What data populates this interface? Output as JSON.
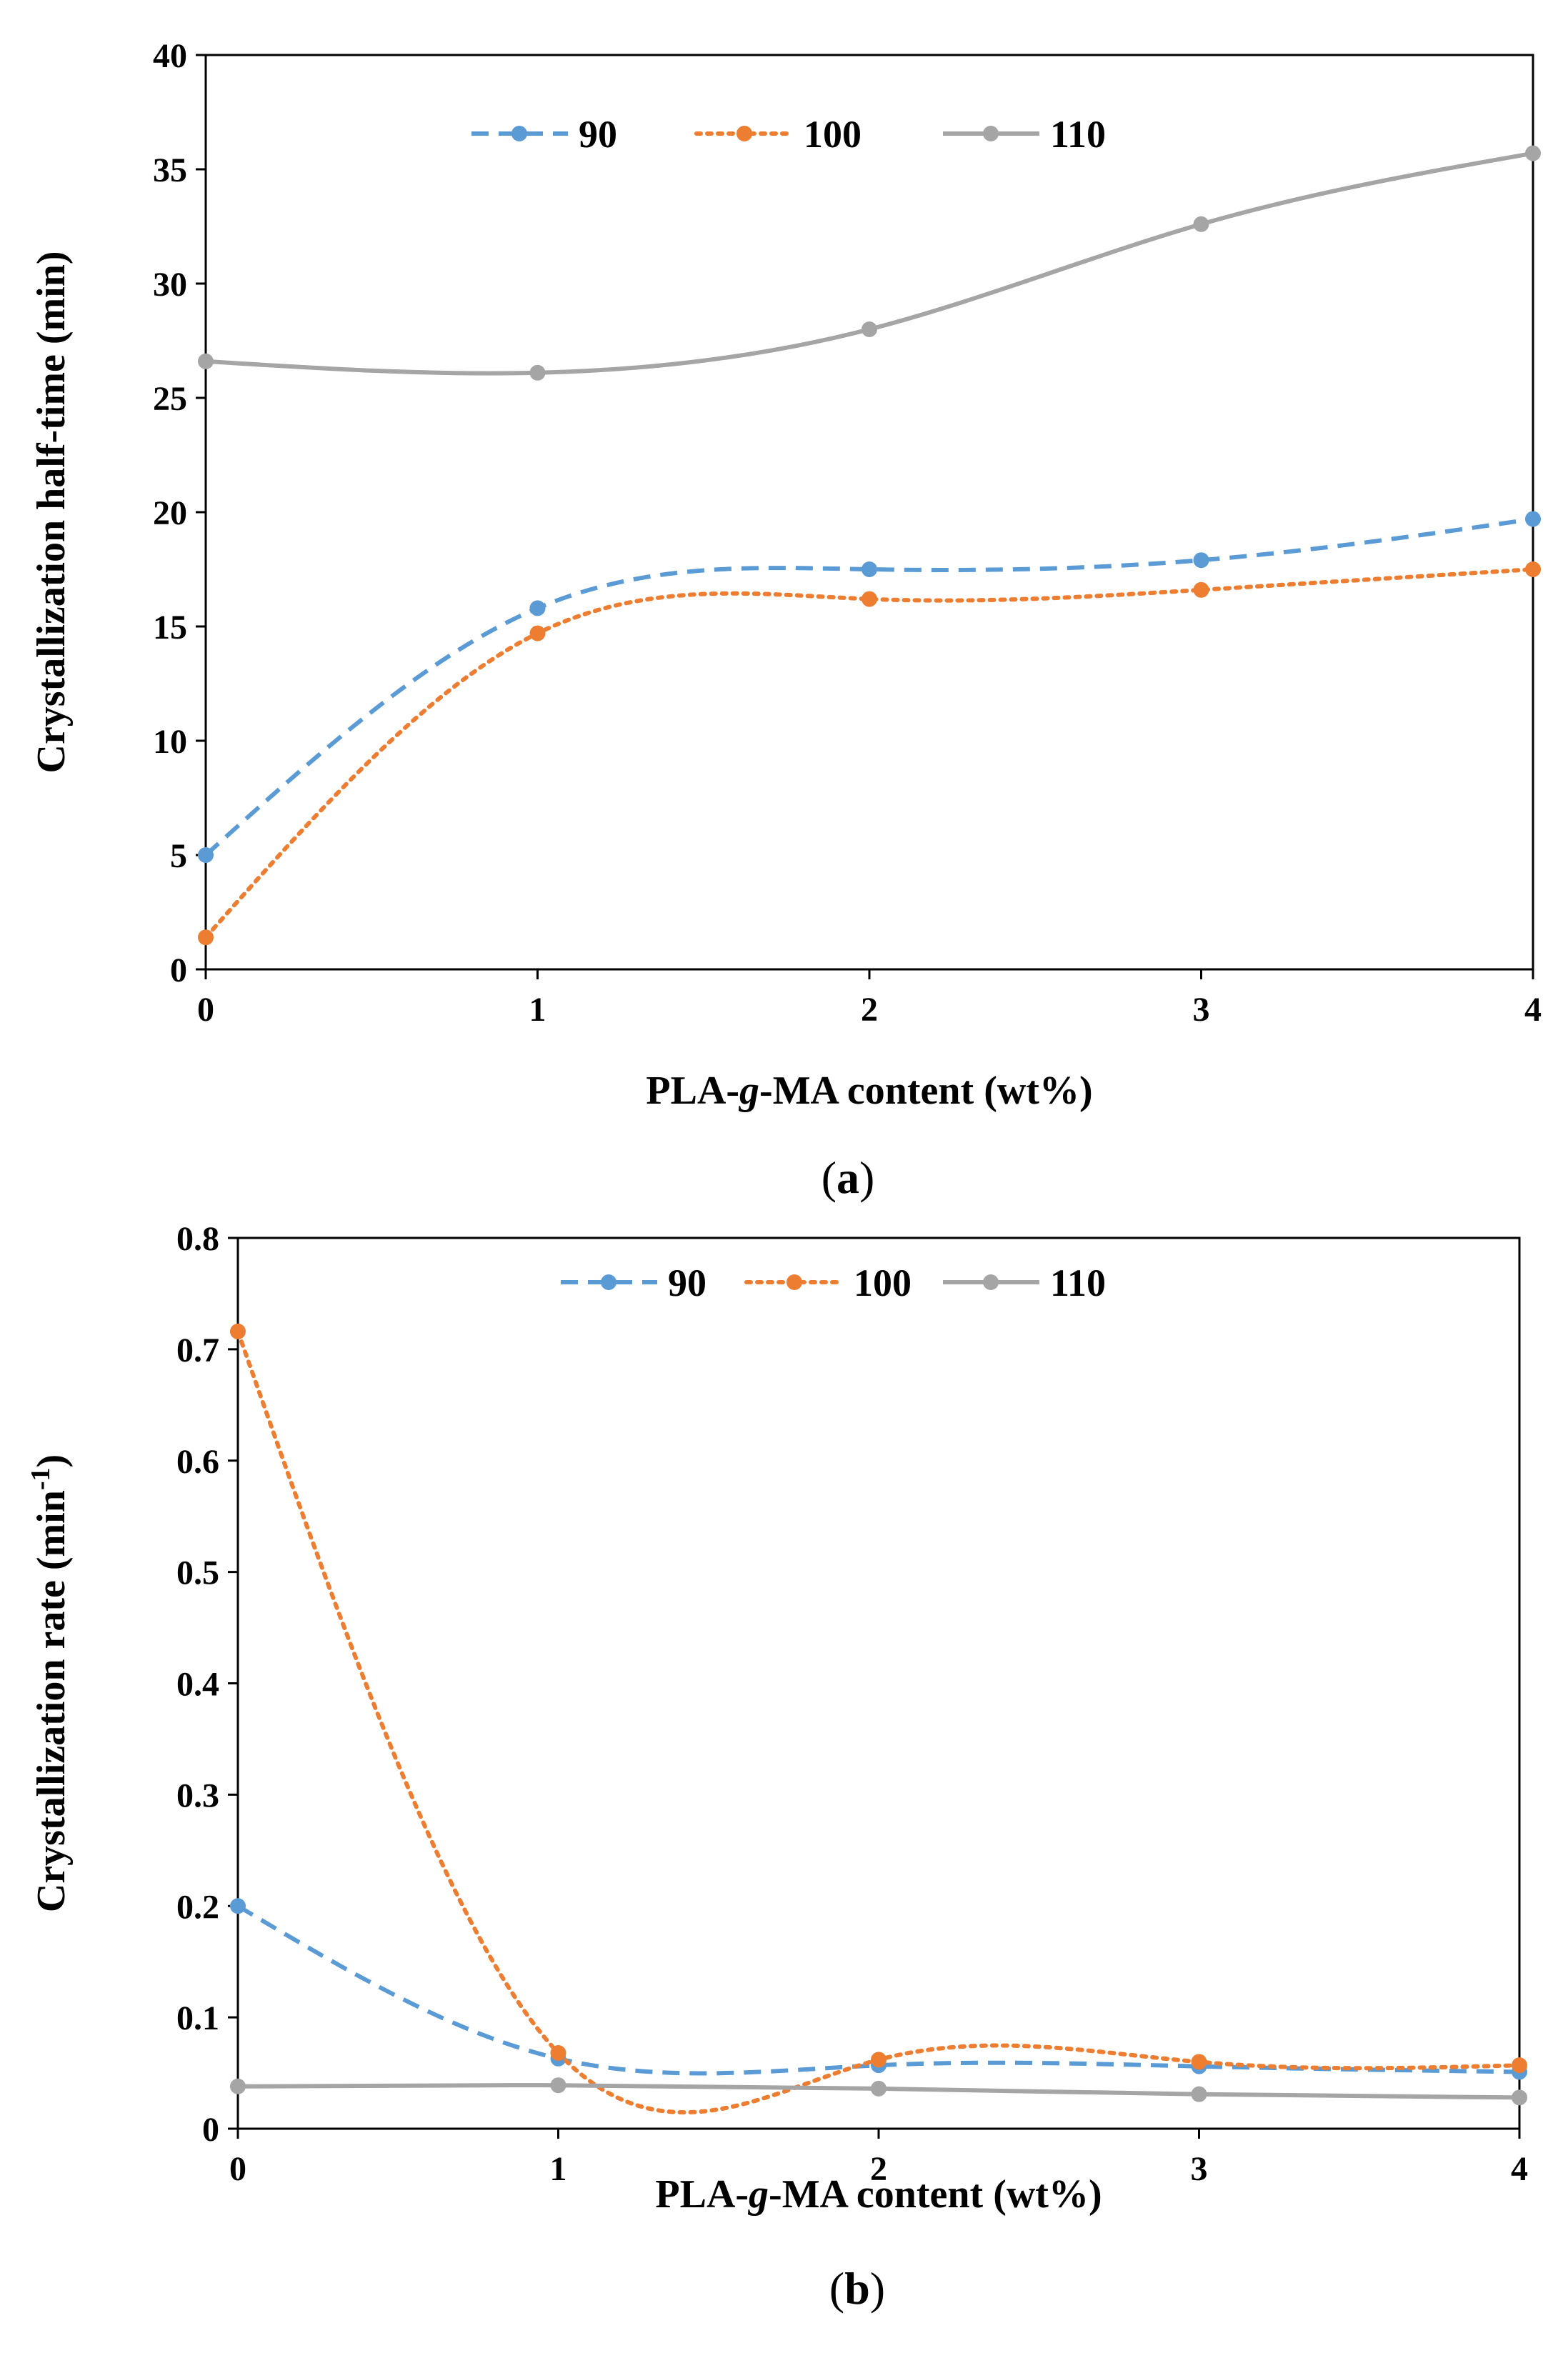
{
  "chart_data": [
    {
      "type": "line",
      "panel": "(a)",
      "x": [
        0,
        1,
        2,
        3,
        4
      ],
      "xlim": [
        0,
        4
      ],
      "xticks": [
        "0",
        "1",
        "2",
        "3",
        "4"
      ],
      "ylim": [
        0,
        40
      ],
      "yticks": [
        "0",
        "5",
        "10",
        "15",
        "20",
        "25",
        "30",
        "35",
        "40"
      ],
      "xlabel": "PLA-g-MA content (wt%)",
      "ylabel": "Crystallization half-time (min)",
      "legend_position": "top-center",
      "series": [
        {
          "name": "90",
          "color": "#5B9BD5",
          "dash": "dashed",
          "values": [
            5.0,
            15.8,
            17.5,
            17.9,
            19.7
          ]
        },
        {
          "name": "100",
          "color": "#ED7D31",
          "dash": "dotted",
          "values": [
            1.4,
            14.7,
            16.2,
            16.6,
            17.5
          ]
        },
        {
          "name": "110",
          "color": "#A5A5A5",
          "dash": "solid",
          "values": [
            26.6,
            26.1,
            28.0,
            32.6,
            35.7
          ]
        }
      ]
    },
    {
      "type": "line",
      "panel": "(b)",
      "x": [
        0,
        1,
        2,
        3,
        4
      ],
      "xlim": [
        0,
        4
      ],
      "xticks": [
        "0",
        "1",
        "2",
        "3",
        "4"
      ],
      "ylim": [
        0,
        0.8
      ],
      "yticks": [
        "0",
        "0.1",
        "0.2",
        "0.3",
        "0.4",
        "0.5",
        "0.6",
        "0.7",
        "0.8"
      ],
      "xlabel": "PLA-g-MA content (wt%)",
      "ylabel": "Crystallization rate (min-1)",
      "legend_position": "top-center",
      "series": [
        {
          "name": "90",
          "color": "#5B9BD5",
          "dash": "dashed",
          "values": [
            0.2,
            0.063,
            0.057,
            0.056,
            0.051
          ]
        },
        {
          "name": "100",
          "color": "#ED7D31",
          "dash": "dotted",
          "values": [
            0.716,
            0.068,
            0.062,
            0.06,
            0.057
          ]
        },
        {
          "name": "110",
          "color": "#A5A5A5",
          "dash": "solid",
          "values": [
            0.038,
            0.039,
            0.036,
            0.031,
            0.028
          ]
        }
      ]
    }
  ]
}
